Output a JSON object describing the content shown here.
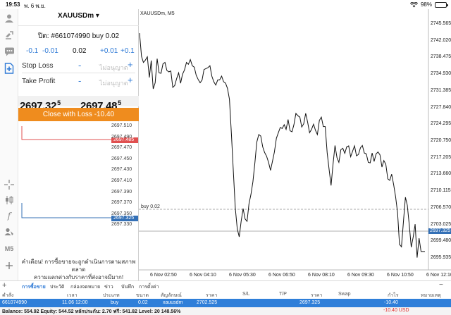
{
  "status": {
    "time": "19:53",
    "date": "พ. 6 พ.ย.",
    "battery": "98%",
    "battery_level": 0.98
  },
  "toolbar": {
    "timeframe_label": "M5"
  },
  "panel": {
    "symbol": "XAUUSDm ▾",
    "order_line": "ปิด: #661074990 buy 0.02",
    "volume": {
      "minus_big": "-0.1",
      "minus_small": "-0.01",
      "value": "0.02",
      "plus_small": "+0.01",
      "plus_big": "+0.1"
    },
    "stop_loss": {
      "label": "Stop Loss",
      "minus": "-",
      "placeholder": "ไม่อนุญาต",
      "plus": "+"
    },
    "take_profit": {
      "label": "Take Profit",
      "minus": "-",
      "placeholder": "ไม่อนุญาต",
      "plus": "+"
    },
    "bid": {
      "main": "2697.32",
      "sup": "5"
    },
    "ask": {
      "main": "2697.48",
      "sup": "5"
    },
    "close_button": "Close with Loss -10.40",
    "ladder_labels": [
      "2697.510",
      "2697.490",
      "2697.470",
      "2697.450",
      "2697.430",
      "2697.410",
      "2697.390",
      "2697.370",
      "2697.350",
      "2697.330"
    ],
    "ask_tag": "2697.485",
    "bid_tag": "2697.325",
    "warning_line1": "คำเตือน! การซื้อขายจะถูกดำเนินการตามสภาพตลาด",
    "warning_line2": "ความแตกต่างกับราคาที่ส่งอาจมีมาก!"
  },
  "chart": {
    "title": "XAUUSDm, M5",
    "buy_line_label": "buy 0.02",
    "price_tag": "2697.325",
    "colors": {
      "line": "#111111",
      "price_tag": "#3470b6",
      "ask_tag": "#e05050"
    },
    "y_ticks": [
      "2745.565",
      "2742.020",
      "2738.475",
      "2734.930",
      "2731.385",
      "2727.840",
      "2724.295",
      "2720.750",
      "2717.205",
      "2713.660",
      "2710.115",
      "2706.570",
      "2703.025",
      "2699.480",
      "2695.935"
    ],
    "x_ticks": [
      "6 Nov 02:50",
      "6 Nov 04:10",
      "6 Nov 05:30",
      "6 Nov 06:50",
      "6 Nov 08:10",
      "6 Nov 09:30",
      "6 Nov 10:50",
      "6 Nov 12:10"
    ],
    "series_close": [
      2743.6,
      2738.7,
      2737.4,
      2737.9,
      2738.6,
      2734.2,
      2737.8,
      2731.8,
      2733.1,
      2738.2,
      2735.2,
      2735.1,
      2737.1,
      2737.4,
      2735.7,
      2735.4,
      2735.6,
      2732.1,
      2732.5,
      2734.0,
      2735.2,
      2733.0,
      2734.9,
      2735.8,
      2737.4,
      2737.0,
      2738.0,
      2736.7,
      2736.4,
      2734.7,
      2733.8,
      2733.1,
      2733.7,
      2735.9,
      2736.1,
      2736.3,
      2736.7,
      2734.5,
      2733.3,
      2732.6,
      2733.7,
      2733.7,
      2734.5,
      2733.3,
      2733.0,
      2731.9,
      2729.6,
      2722.2,
      2714.1,
      2706.5,
      2702.1,
      2700.4,
      2703.7,
      2706.4,
      2704.2,
      2703.7,
      2707.4,
      2709.4,
      2712.1,
      2716.1,
      2720.5,
      2722.1,
      2721.8,
      2719.5,
      2718.3,
      2717.5,
      2716.2,
      2714.5,
      2716.4,
      2718.4,
      2721.3,
      2722.5,
      2723.6,
      2723.4,
      2724.2,
      2723.2,
      2725.3,
      2722.9,
      2722.7,
      2724.2,
      2726.6,
      2726.1,
      2725.8,
      2723.7,
      2724.4,
      2726.6,
      2724.7,
      2722.5,
      2723.2,
      2724.3,
      2723.0,
      2722.1,
      2725.1,
      2725.8,
      2723.8,
      2723.8,
      2718.2,
      2714.6,
      2711.3,
      2715.8,
      2719.8,
      2717.2,
      2716.2,
      2718.9,
      2719.2,
      2718.1,
      2719.5,
      2719.7,
      2717.4,
      2718.6,
      2719.7,
      2717.6,
      2717.9,
      2719.3,
      2719.8,
      2718.2,
      2718.0,
      2716.2,
      2716.1,
      2718.2,
      2716.4,
      2718.0,
      2718.4,
      2717.8,
      2715.2,
      2716.6,
      2715.8,
      2712.7,
      2712.4,
      2713.7,
      2711.5,
      2708.9,
      2705.5,
      2698.8,
      2698.3,
      2703.6,
      2708.8,
      2707.1,
      2702.9,
      2698.2,
      2700.4,
      2703.1,
      2696.0,
      2700.1,
      2697.3,
      2697.3,
      2697.3
    ]
  },
  "tabs": [
    "การซื้อขาย",
    "ประวัติ",
    "กล่องจดหมาย",
    "ข่าว",
    "บันทึก",
    "การตั้งค่า"
  ],
  "table": {
    "headers": [
      "คำสั่ง",
      "เวลา",
      "ประเภท",
      "ขนาด",
      "สัญลักษณ์",
      "ราคา",
      "S/L",
      "T/P",
      "ราคา",
      "Swap",
      "กำไร",
      "หมายเหตุ"
    ],
    "row": {
      "order": "661074990",
      "time": "11.06 12:00",
      "type": "buy",
      "size": "0.02",
      "symbol": "xauusdm",
      "price": "2702.525",
      "current": "2697.325",
      "profit": "-10.40"
    }
  },
  "balance": {
    "text": "Balance: 554.92 Equity: 544.52 หลักประกัน: 2.70 ฟรี: 541.82 Level: 20 148.56%",
    "pl": "-10.40  USD"
  }
}
